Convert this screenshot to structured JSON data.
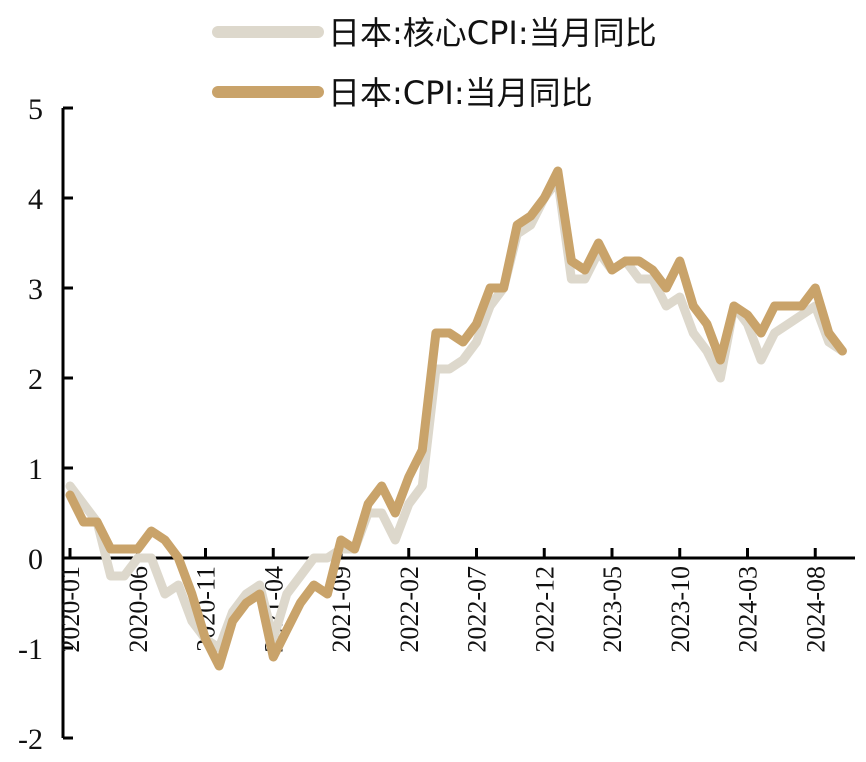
{
  "chart_data": {
    "type": "line",
    "xlabel": "",
    "ylabel": "",
    "ylim": [
      -2,
      5
    ],
    "yticks": [
      -2,
      -1,
      0,
      1,
      2,
      3,
      4,
      5
    ],
    "xtick_labels": [
      "2020-01",
      "2020-06",
      "2020-11",
      "2021-04",
      "2021-09",
      "2022-02",
      "2022-07",
      "2022-12",
      "2023-05",
      "2023-10",
      "2024-03",
      "2024-08"
    ],
    "legend_position": "top-center",
    "grid": false,
    "x": [
      "2020-01",
      "2020-02",
      "2020-03",
      "2020-04",
      "2020-05",
      "2020-06",
      "2020-07",
      "2020-08",
      "2020-09",
      "2020-10",
      "2020-11",
      "2020-12",
      "2021-01",
      "2021-02",
      "2021-03",
      "2021-04",
      "2021-05",
      "2021-06",
      "2021-07",
      "2021-08",
      "2021-09",
      "2021-10",
      "2021-11",
      "2021-12",
      "2022-01",
      "2022-02",
      "2022-03",
      "2022-04",
      "2022-05",
      "2022-06",
      "2022-07",
      "2022-08",
      "2022-09",
      "2022-10",
      "2022-11",
      "2022-12",
      "2023-01",
      "2023-02",
      "2023-03",
      "2023-04",
      "2023-05",
      "2023-06",
      "2023-07",
      "2023-08",
      "2023-09",
      "2023-10",
      "2023-11",
      "2023-12",
      "2024-01",
      "2024-02",
      "2024-03",
      "2024-04",
      "2024-05",
      "2024-06",
      "2024-07",
      "2024-08",
      "2024-09",
      "2024-10"
    ],
    "series": [
      {
        "name": "日本:核心CPI:当月同比",
        "color": "#ddd8cc",
        "values": [
          0.8,
          0.6,
          0.4,
          -0.2,
          -0.2,
          0.0,
          0.0,
          -0.4,
          -0.3,
          -0.7,
          -0.9,
          -1.0,
          -0.6,
          -0.4,
          -0.3,
          -0.9,
          -0.4,
          -0.2,
          0.0,
          0.0,
          0.1,
          0.1,
          0.5,
          0.5,
          0.2,
          0.6,
          0.8,
          2.1,
          2.1,
          2.2,
          2.4,
          2.8,
          3.0,
          3.6,
          3.7,
          4.0,
          4.2,
          3.1,
          3.1,
          3.4,
          3.2,
          3.3,
          3.1,
          3.1,
          2.8,
          2.9,
          2.5,
          2.3,
          2.0,
          2.8,
          2.6,
          2.2,
          2.5,
          2.6,
          2.7,
          2.8,
          2.4,
          2.3
        ]
      },
      {
        "name": "日本:CPI:当月同比",
        "color": "#c9a36a",
        "values": [
          0.7,
          0.4,
          0.4,
          0.1,
          0.1,
          0.1,
          0.3,
          0.2,
          0.0,
          -0.4,
          -0.9,
          -1.2,
          -0.7,
          -0.5,
          -0.4,
          -1.1,
          -0.8,
          -0.5,
          -0.3,
          -0.4,
          0.2,
          0.1,
          0.6,
          0.8,
          0.5,
          0.9,
          1.2,
          2.5,
          2.5,
          2.4,
          2.6,
          3.0,
          3.0,
          3.7,
          3.8,
          4.0,
          4.3,
          3.3,
          3.2,
          3.5,
          3.2,
          3.3,
          3.3,
          3.2,
          3.0,
          3.3,
          2.8,
          2.6,
          2.2,
          2.8,
          2.7,
          2.5,
          2.8,
          2.8,
          2.8,
          3.0,
          2.5,
          2.3
        ]
      }
    ]
  }
}
